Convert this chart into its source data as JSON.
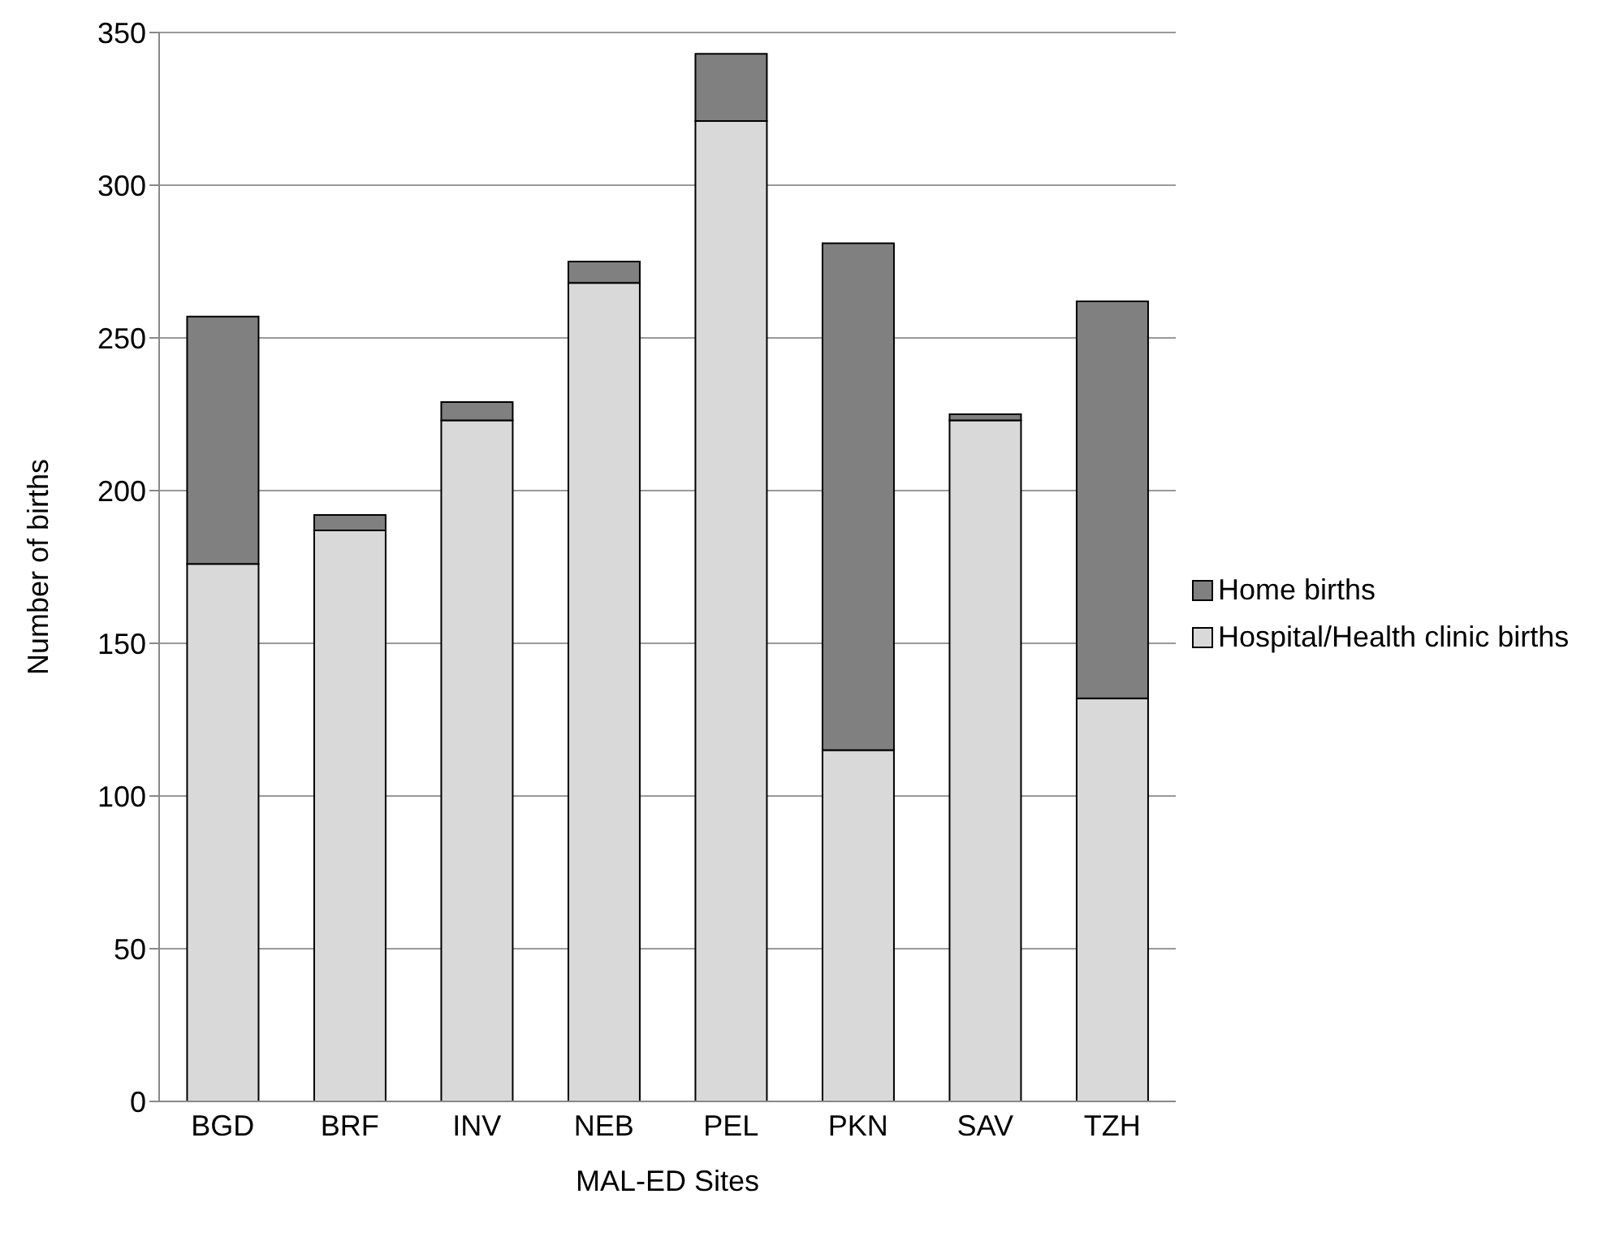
{
  "chart_data": {
    "type": "bar",
    "stacked": true,
    "xlabel": "MAL-ED Sites",
    "ylabel": "Number of births",
    "categories": [
      "BGD",
      "BRF",
      "INV",
      "NEB",
      "PEL",
      "PKN",
      "SAV",
      "TZH"
    ],
    "series": [
      {
        "name": "Hospital/Health clinic births",
        "color": "#d9d9d9",
        "values": [
          176,
          187,
          223,
          268,
          321,
          115,
          223,
          132
        ]
      },
      {
        "name": "Home births",
        "color": "#808080",
        "values": [
          81,
          5,
          6,
          7,
          22,
          166,
          2,
          130
        ]
      }
    ],
    "ylim": [
      0,
      350
    ],
    "yticks": [
      0,
      50,
      100,
      150,
      200,
      250,
      300,
      350
    ],
    "grid": "y",
    "legend": "right"
  }
}
